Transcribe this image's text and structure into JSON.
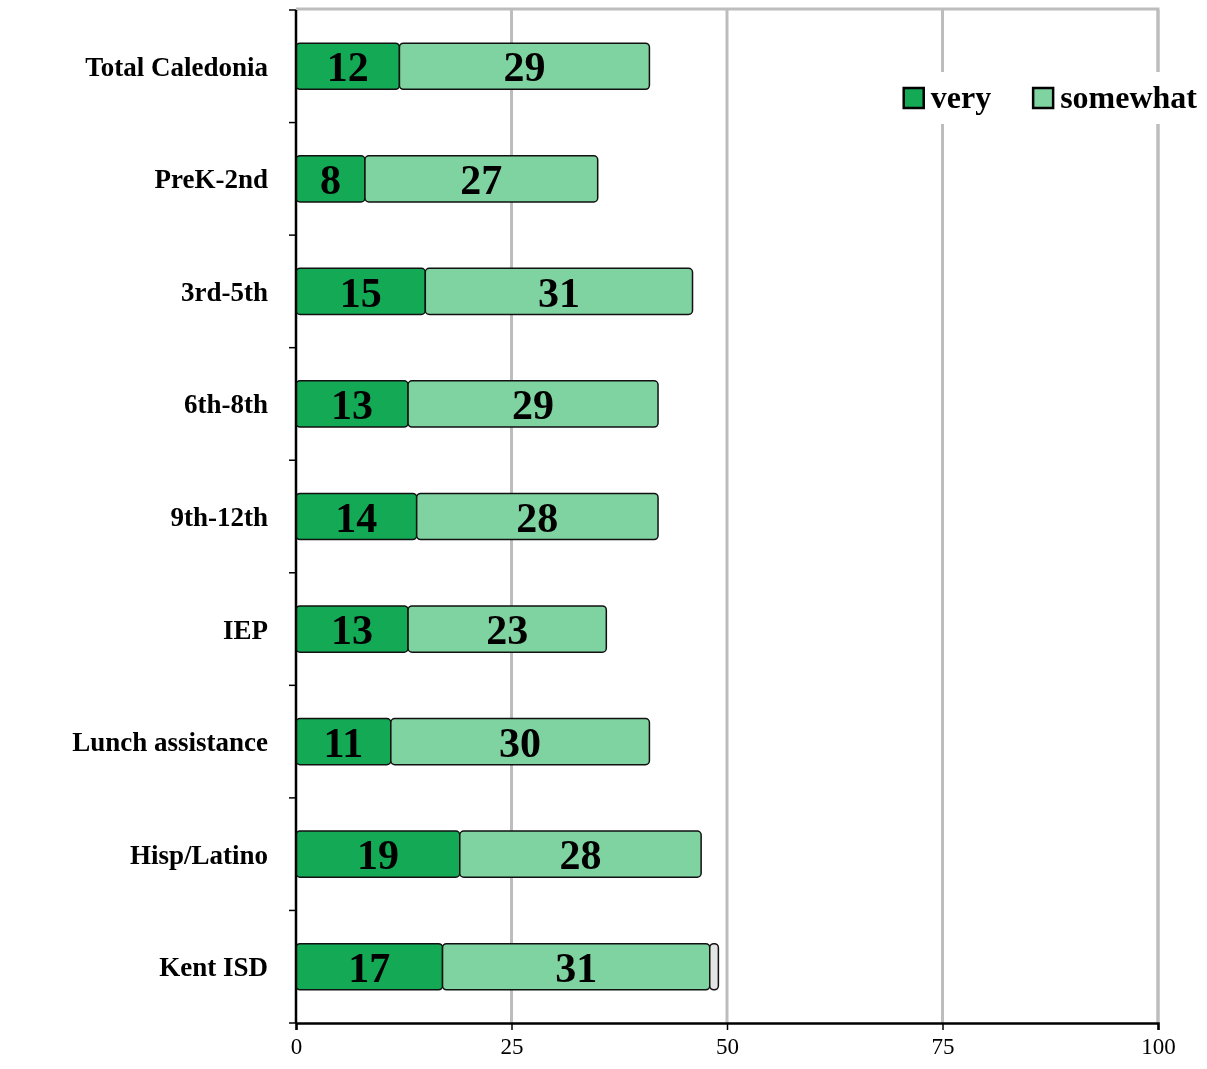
{
  "chart_data": {
    "type": "bar",
    "orientation": "horizontal",
    "stacked": true,
    "categories": [
      "Total Caledonia",
      "PreK-2nd",
      "3rd-5th",
      "6th-8th",
      "9th-12th",
      "IEP",
      "Lunch assistance",
      "Hisp/Latino",
      "Kent ISD"
    ],
    "series": [
      {
        "name": "very",
        "color": "#13a955",
        "values": [
          12,
          8,
          15,
          13,
          14,
          13,
          11,
          19,
          17
        ],
        "value_labels": [
          "12",
          "8",
          "15",
          "13",
          "14",
          "13",
          "11",
          "19",
          "17"
        ]
      },
      {
        "name": "somewhat",
        "color": "#7fd3a0",
        "values": [
          29,
          27,
          31,
          29,
          28,
          23,
          30,
          28,
          31
        ],
        "value_labels": [
          "29",
          "27",
          "31",
          "29",
          "28",
          "23",
          "30",
          "28",
          "31"
        ]
      },
      {
        "color": "#e4e4e4",
        "values": [
          null,
          null,
          null,
          null,
          null,
          null,
          null,
          null,
          1
        ]
      }
    ],
    "xlim": [
      0,
      100
    ],
    "xticks": [
      0,
      25,
      50,
      75,
      100
    ],
    "grid": "x",
    "legend": "top right"
  }
}
